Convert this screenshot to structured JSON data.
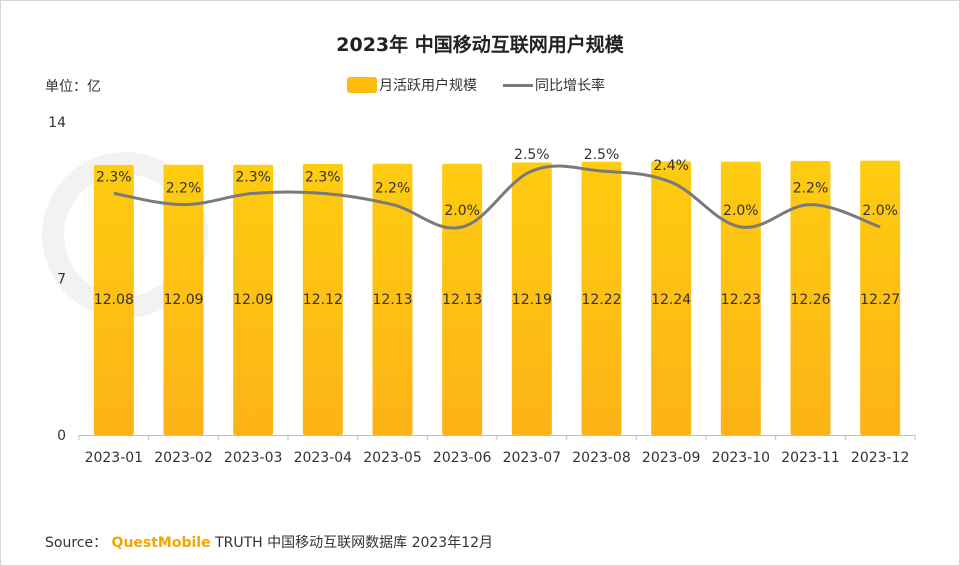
{
  "title": "2023年 中国移动互联网用户规模",
  "unit_label": "单位：亿",
  "legend": {
    "bar_label": "月活跃用户规模",
    "line_label": "同比增长率"
  },
  "source": {
    "prefix": "Source：",
    "brand": "QuestMobile",
    "suffix": "TRUTH 中国移动互联网数据库 2023年12月"
  },
  "colors": {
    "bar_top": "#fecc10",
    "bar_bottom": "#fdb317",
    "line": "#7a7a7a",
    "brand": "#f5a400"
  },
  "chart_data": {
    "type": "bar",
    "categories": [
      "2023-01",
      "2023-02",
      "2023-03",
      "2023-04",
      "2023-05",
      "2023-06",
      "2023-07",
      "2023-08",
      "2023-09",
      "2023-10",
      "2023-11",
      "2023-12"
    ],
    "y_ticks": [
      "14",
      "7",
      "0"
    ],
    "ylim": [
      0,
      14
    ],
    "series": [
      {
        "name": "月活跃用户规模",
        "type": "bar",
        "values": [
          12.08,
          12.09,
          12.09,
          12.12,
          12.13,
          12.13,
          12.19,
          12.22,
          12.24,
          12.23,
          12.26,
          12.27
        ],
        "labels": [
          "12.08",
          "12.09",
          "12.09",
          "12.12",
          "12.13",
          "12.13",
          "12.19",
          "12.22",
          "12.24",
          "12.23",
          "12.26",
          "12.27"
        ]
      },
      {
        "name": "同比增长率",
        "type": "line",
        "values": [
          2.3,
          2.2,
          2.3,
          2.3,
          2.2,
          2.0,
          2.5,
          2.5,
          2.4,
          2.0,
          2.2,
          2.0
        ],
        "labels": [
          "2.3%",
          "2.2%",
          "2.3%",
          "2.3%",
          "2.2%",
          "2.0%",
          "2.5%",
          "2.5%",
          "2.4%",
          "2.0%",
          "2.2%",
          "2.0%"
        ]
      }
    ],
    "grid": false,
    "legend_position": "top-center"
  }
}
